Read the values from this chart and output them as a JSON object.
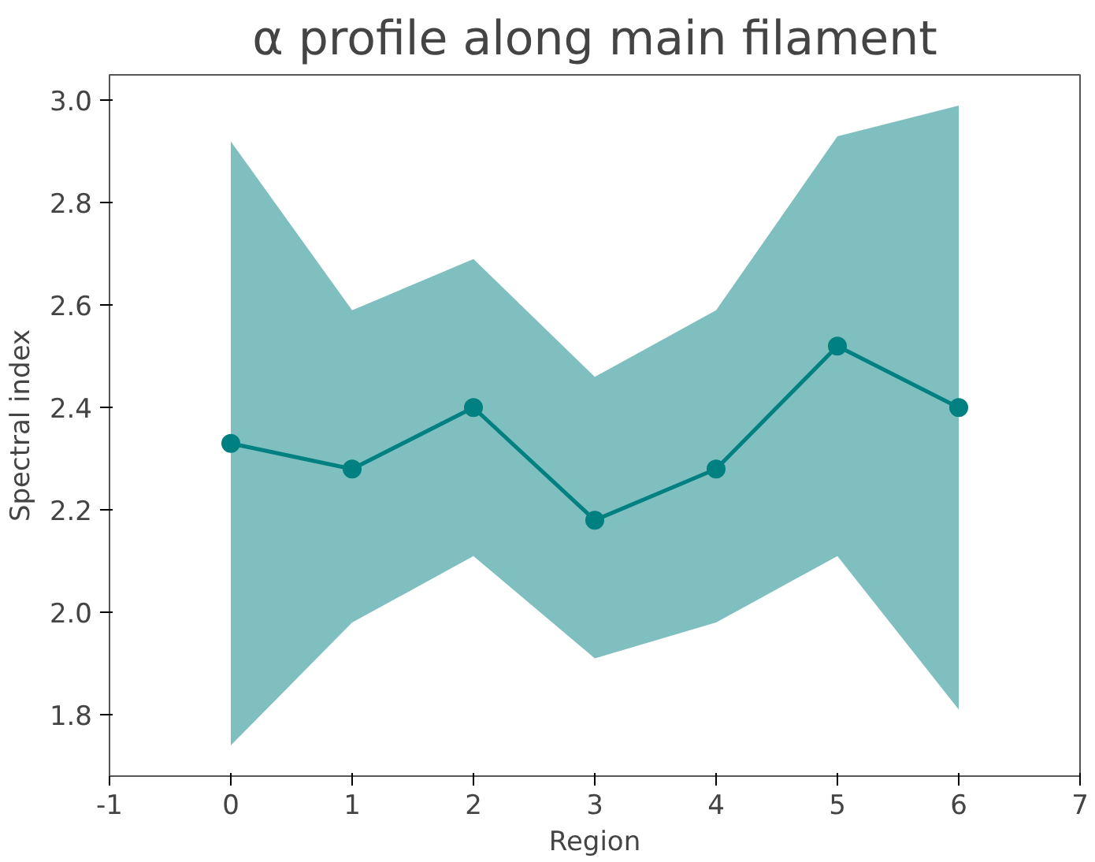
{
  "chart_data": {
    "type": "line",
    "title": "α profile along main filament",
    "xlabel": "Region",
    "ylabel": "Spectral index",
    "x": [
      0,
      1,
      2,
      3,
      4,
      5,
      6
    ],
    "series": [
      {
        "color": "#008080",
        "values": [
          2.33,
          2.28,
          2.4,
          2.18,
          2.28,
          2.52,
          2.4
        ],
        "lower": [
          1.74,
          1.98,
          2.11,
          1.91,
          1.98,
          2.11,
          1.81
        ],
        "upper": [
          2.92,
          2.59,
          2.69,
          2.46,
          2.59,
          2.93,
          2.99
        ]
      }
    ],
    "xlim": [
      -1,
      7
    ],
    "xticks": [
      -1,
      0,
      1,
      2,
      3,
      4,
      5,
      6,
      7
    ],
    "ylim": [
      1.68,
      3.05
    ],
    "yticks": [
      {
        "value": 1.8,
        "label": "1.8"
      },
      {
        "value": 2.0,
        "label": "2.0"
      },
      {
        "value": 2.2,
        "label": "2.2"
      },
      {
        "value": 2.4,
        "label": "2.4"
      },
      {
        "value": 2.6,
        "label": "2.6"
      },
      {
        "value": 2.8,
        "label": "2.8"
      },
      {
        "value": 3.0,
        "label": "3.0"
      }
    ],
    "marker": "circle",
    "line_style": "solid",
    "grid": false
  }
}
